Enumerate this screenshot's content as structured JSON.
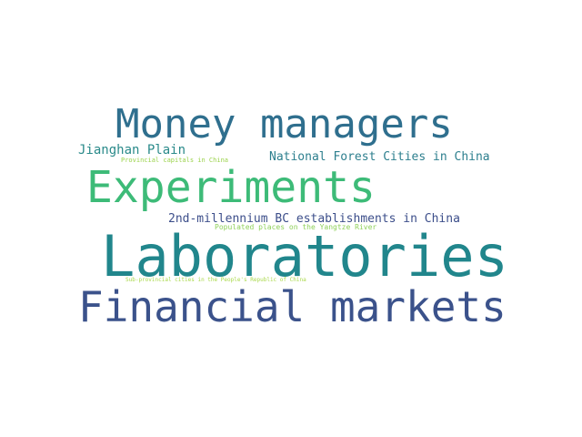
{
  "words": [
    {
      "key": "money_managers",
      "text": "Money managers",
      "color": "#2f6f8e"
    },
    {
      "key": "jianghan_plain",
      "text": "Jianghan Plain",
      "color": "#2a8a8a"
    },
    {
      "key": "provincial_capitals",
      "text": "Provincial capitals in China",
      "color": "#9ad24a"
    },
    {
      "key": "national_forest",
      "text": "National Forest Cities in China",
      "color": "#2d7f8e"
    },
    {
      "key": "experiments",
      "text": "Experiments",
      "color": "#3dbb78"
    },
    {
      "key": "bc_establishments",
      "text": "2nd-millennium BC establishments in China",
      "color": "#3c4e8a"
    },
    {
      "key": "populated_places",
      "text": "Populated places on the Yangtze River",
      "color": "#8fd15a"
    },
    {
      "key": "laboratories",
      "text": "Laboratories",
      "color": "#21868c"
    },
    {
      "key": "sub_provincial",
      "text": "Sub-provincial cities in the People's Republic of China",
      "color": "#a9d84a"
    },
    {
      "key": "financial_markets",
      "text": "Financial markets",
      "color": "#3b528b"
    }
  ]
}
